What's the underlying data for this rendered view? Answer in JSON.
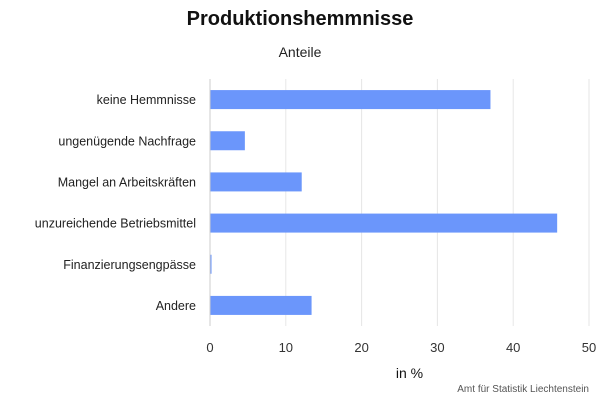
{
  "chart_data": {
    "type": "bar",
    "orientation": "horizontal",
    "title": "Produktionshemmnisse",
    "subtitle": "Anteile",
    "xlabel": "in %",
    "ylabel": "",
    "categories": [
      "keine Hemmnisse",
      "ungenügende Nachfrage",
      "Mangel an Arbeitskräften",
      "unzureichende Betriebsmittel",
      "Finanzierungsengpässe",
      "Andere"
    ],
    "values": [
      37,
      4.6,
      12.1,
      45.8,
      0.2,
      13.4
    ],
    "xlim": [
      0,
      50
    ],
    "xticks": [
      "0",
      "10",
      "20",
      "30",
      "40",
      "50"
    ],
    "grid": true,
    "bar_color": "#6b96fb",
    "credit": "Amt für Statistik Liechtenstein"
  }
}
